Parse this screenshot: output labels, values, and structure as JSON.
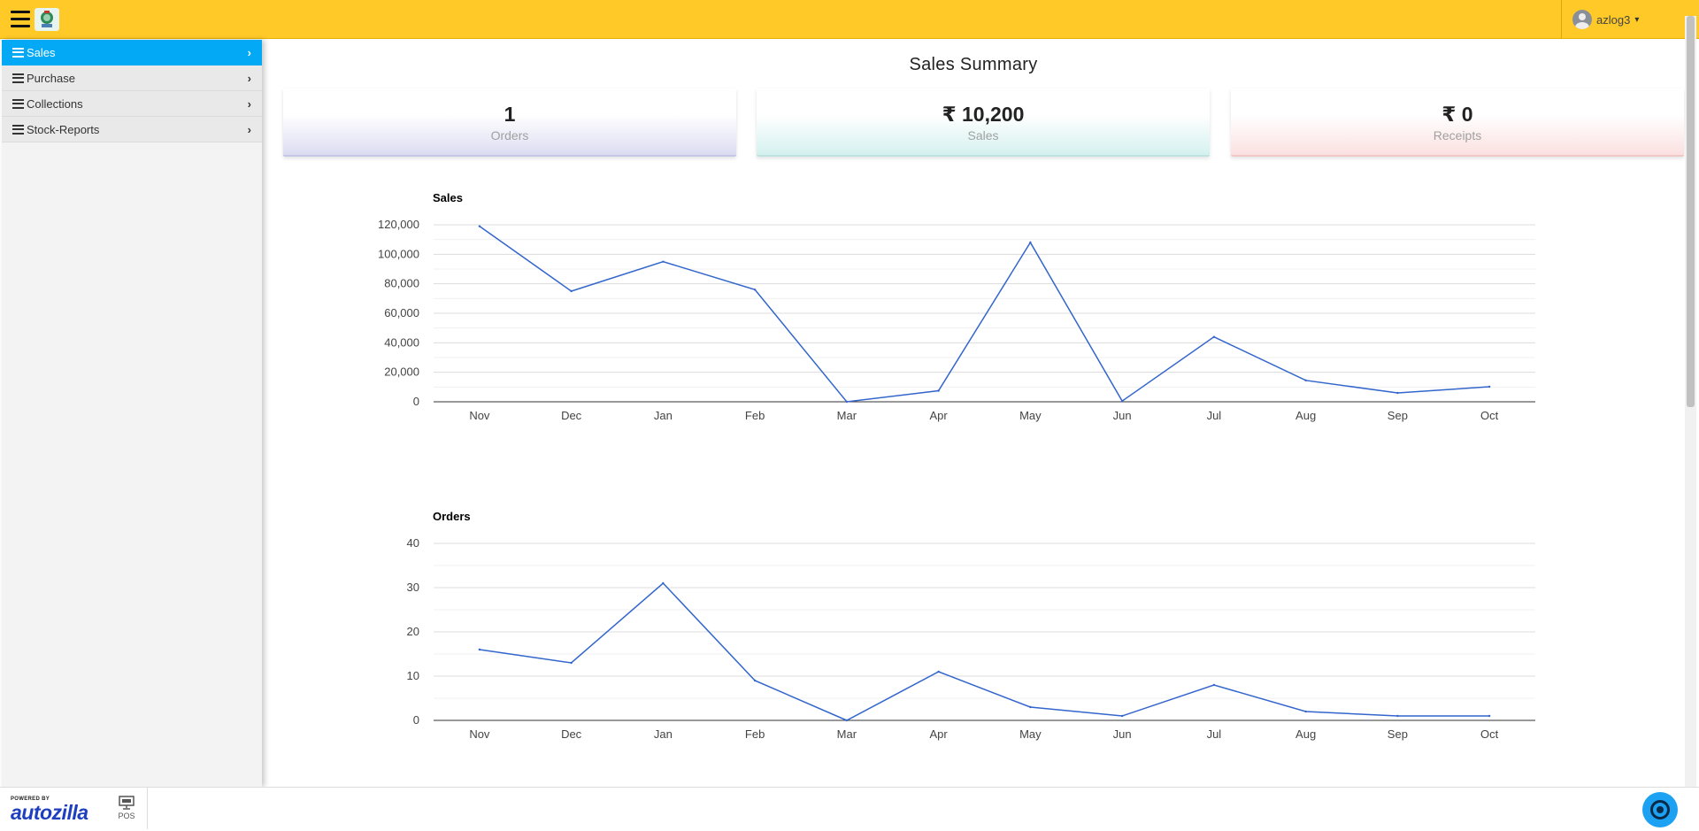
{
  "header": {
    "user_name": "azlog3",
    "caret": "▾"
  },
  "sidebar": {
    "items": [
      {
        "label": "Sales",
        "active": true
      },
      {
        "label": "Purchase",
        "active": false
      },
      {
        "label": "Collections",
        "active": false
      },
      {
        "label": "Stock-Reports",
        "active": false
      }
    ],
    "chevron": "›"
  },
  "main": {
    "title": "Sales Summary",
    "cards": {
      "orders": {
        "value": "1",
        "label": "Orders"
      },
      "sales": {
        "value": "₹ 10,200",
        "label": "Sales"
      },
      "receipts": {
        "value": "₹ 0",
        "label": "Receipts"
      }
    }
  },
  "footer": {
    "powered_by": "POWERED BY",
    "brand": "autozilla",
    "pos_label": "POS"
  },
  "colors": {
    "header": "#ffca28",
    "active_nav": "#03a9f4",
    "line": "#3366cc"
  },
  "chart_data": [
    {
      "type": "line",
      "title": "Sales",
      "categories": [
        "Nov",
        "Dec",
        "Jan",
        "Feb",
        "Mar",
        "Apr",
        "May",
        "Jun",
        "Jul",
        "Aug",
        "Sep",
        "Oct"
      ],
      "values": [
        119000,
        75000,
        95000,
        76000,
        0,
        7500,
        108000,
        500,
        44000,
        14500,
        6000,
        10200
      ],
      "ylim": [
        0,
        120000
      ],
      "yticks": [
        "0",
        "20,000",
        "40,000",
        "60,000",
        "80,000",
        "100,000",
        "120,000"
      ],
      "ytick_values": [
        0,
        20000,
        40000,
        60000,
        80000,
        100000,
        120000
      ],
      "grid": true
    },
    {
      "type": "line",
      "title": "Orders",
      "categories": [
        "Nov",
        "Dec",
        "Jan",
        "Feb",
        "Mar",
        "Apr",
        "May",
        "Jun",
        "Jul",
        "Aug",
        "Sep",
        "Oct"
      ],
      "values": [
        16,
        13,
        31,
        9,
        0,
        11,
        3,
        1,
        8,
        2,
        1,
        1
      ],
      "ylim": [
        0,
        40
      ],
      "yticks": [
        "0",
        "10",
        "20",
        "30",
        "40"
      ],
      "ytick_values": [
        0,
        10,
        20,
        30,
        40
      ],
      "grid": true
    }
  ]
}
